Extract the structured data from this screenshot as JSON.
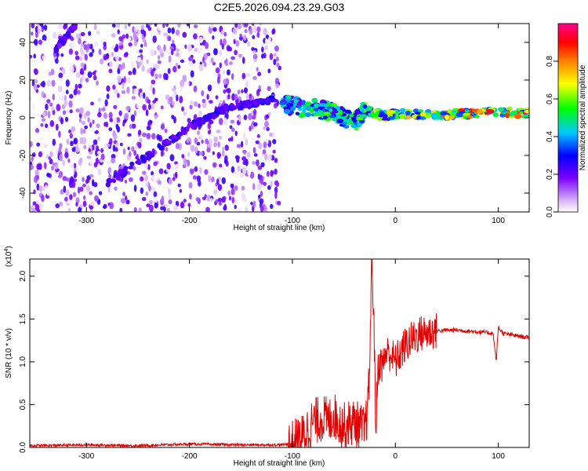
{
  "figure": {
    "title": "C2E5.2026.094.23.29.G03"
  },
  "chart_data": [
    {
      "type": "heatmap",
      "title": "",
      "xlabel": "Height of straight line (km)",
      "ylabel": "Frequency (Hz)",
      "xlim": [
        -355,
        130
      ],
      "ylim": [
        -50,
        50
      ],
      "xticks": [
        -300,
        -200,
        -100,
        0,
        100
      ],
      "yticks": [
        -40,
        -20,
        0,
        20,
        40
      ],
      "colorbar": {
        "label": "Normalized spectral amplitude",
        "range": [
          0,
          1
        ],
        "ticks": [
          "0.0",
          "0.2",
          "0.4",
          "0.6",
          "0.8"
        ],
        "colormap": [
          "#ffffff",
          "#d8b4f8",
          "#7a00ff",
          "#0000ff",
          "#00ffff",
          "#00ff00",
          "#ffff00",
          "#ff8000",
          "#ff0000",
          "#ff00a0"
        ]
      },
      "features": [
        {
          "name": "noise",
          "x_range": [
            -355,
            -112
          ],
          "amplitude": 0.15
        },
        {
          "name": "rising diagonal track",
          "points": [
            [
              -280,
              -35
            ],
            [
              -200,
              -5
            ],
            [
              -165,
              5
            ],
            [
              -115,
              10
            ]
          ],
          "amplitude": 0.2
        },
        {
          "name": "upper diagonal track",
          "points": [
            [
              -330,
              36
            ],
            [
              -310,
              50
            ]
          ],
          "amplitude": 0.2
        },
        {
          "name": "signal band",
          "points": [
            [
              -110,
              7
            ],
            [
              -80,
              5
            ],
            [
              -60,
              3
            ],
            [
              -40,
              -3
            ],
            [
              -30,
              4
            ],
            [
              -10,
              1
            ],
            [
              0,
              2
            ],
            [
              50,
              1.5
            ],
            [
              90,
              3
            ],
            [
              130,
              2.5
            ]
          ],
          "amplitude_start": 0.45,
          "amplitude_end": 0.95
        }
      ]
    },
    {
      "type": "line",
      "title": "",
      "xlabel": "Height of straight line (km)",
      "ylabel": "SNR (10 * v/v)",
      "yscale_label": "(x10",
      "yscale_exponent": "4",
      "yscale_close": ")",
      "xlim": [
        -355,
        130
      ],
      "ylim": [
        0,
        2.2
      ],
      "xticks": [
        -300,
        -200,
        -100,
        0,
        100
      ],
      "yticks": [
        0.0,
        0.5,
        1.0,
        1.5,
        2.0
      ],
      "ytick_labels": [
        "0.0",
        "0.5",
        "1.0",
        "1.5",
        "2.0"
      ],
      "series": [
        {
          "color": "#e00000",
          "x": [
            -355,
            -300,
            -250,
            -200,
            -150,
            -110,
            -100,
            -95,
            -90,
            -85,
            -80,
            -75,
            -70,
            -65,
            -60,
            -55,
            -50,
            -45,
            -40,
            -35,
            -30,
            -27,
            -25,
            -23,
            -21,
            -19,
            -17,
            -15,
            -12,
            -10,
            -5,
            0,
            5,
            10,
            15,
            20,
            25,
            30,
            35,
            40,
            50,
            60,
            70,
            80,
            90,
            95,
            98,
            100,
            105,
            110,
            115,
            120,
            125,
            130
          ],
          "y": [
            0.02,
            0.03,
            0.02,
            0.04,
            0.03,
            0.03,
            0.05,
            0.08,
            0.12,
            0.22,
            0.3,
            0.32,
            0.35,
            0.3,
            0.38,
            0.3,
            0.25,
            0.28,
            0.3,
            0.25,
            0.2,
            0.4,
            0.9,
            2.2,
            1.6,
            0.2,
            0.9,
            1.0,
            0.95,
            1.1,
            1.1,
            1.0,
            1.1,
            1.2,
            1.25,
            1.3,
            1.33,
            1.34,
            1.35,
            1.36,
            1.37,
            1.37,
            1.36,
            1.35,
            1.34,
            1.33,
            1.0,
            1.4,
            1.33,
            1.32,
            1.31,
            1.3,
            1.29,
            1.28
          ]
        }
      ]
    }
  ]
}
